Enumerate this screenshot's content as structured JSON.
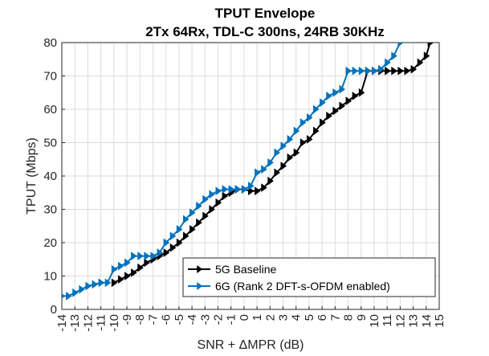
{
  "chart_data": {
    "type": "line",
    "title_lines": [
      "TPUT Envelope",
      "2Tx 64Rx, TDL-C 300ns, 24RB 30KHz"
    ],
    "xlabel": "SNR + ΔMPR (dB)",
    "ylabel": "TPUT (Mbps)",
    "xlim": [
      -14,
      15
    ],
    "ylim": [
      0,
      80
    ],
    "xticks": [
      -14,
      -13,
      -12,
      -11,
      -10,
      -9,
      -8,
      -7,
      -6,
      -5,
      -4,
      -3,
      -2,
      -1,
      0,
      1,
      2,
      3,
      4,
      5,
      6,
      7,
      8,
      9,
      10,
      11,
      12,
      13,
      14,
      15
    ],
    "yticks": [
      0,
      10,
      20,
      30,
      40,
      50,
      60,
      70,
      80
    ],
    "grid": true,
    "legend_position": "bottom-right",
    "series": [
      {
        "name": "5G Baseline",
        "color": "#000000",
        "marker": "triangle-right",
        "x": [
          -10,
          -9.5,
          -9,
          -8.5,
          -8,
          -7.5,
          -7,
          -6.5,
          -6,
          -5.5,
          -5,
          -4.5,
          -4,
          -3.5,
          -3,
          -2.5,
          -2,
          -1.5,
          -1,
          -0.5,
          0,
          0.5,
          1,
          1.5,
          2,
          2.5,
          3,
          3.5,
          4,
          4.5,
          5,
          5.5,
          6,
          6.5,
          7,
          7.5,
          8,
          8.5,
          9,
          9.5,
          10,
          10.5,
          11,
          11.5,
          12,
          12.5,
          13,
          13.5,
          14,
          14.3
        ],
        "y": [
          8,
          9,
          10,
          11,
          12.5,
          14,
          15,
          16,
          17,
          18.5,
          20,
          22,
          24,
          26,
          28,
          30,
          32,
          34,
          35,
          36,
          36,
          35.5,
          35.5,
          36.5,
          38.5,
          41,
          43,
          45.5,
          47,
          50,
          51,
          53.5,
          56,
          58,
          59.5,
          61,
          62.5,
          64,
          65,
          71.5,
          71.5,
          71.5,
          71.5,
          71.5,
          71.5,
          71.5,
          72,
          74,
          76,
          80
        ]
      },
      {
        "name": "6G (Rank 2 DFT-s-OFDM enabled)",
        "color": "#0072BD",
        "marker": "triangle-right",
        "x": [
          -14,
          -13.5,
          -13,
          -12.5,
          -12,
          -11.5,
          -11,
          -10.5,
          -10,
          -9.5,
          -9,
          -8.5,
          -8,
          -7.5,
          -7,
          -6.5,
          -6,
          -5.5,
          -5,
          -4.5,
          -4,
          -3.5,
          -3,
          -2.5,
          -2,
          -1.5,
          -1,
          -0.5,
          0,
          0.5,
          1,
          1.5,
          2,
          2.5,
          3,
          3.5,
          4,
          4.5,
          5,
          5.5,
          6,
          6.5,
          7,
          7.5,
          8,
          8.5,
          9,
          9.5,
          10,
          10.5,
          11,
          11.5,
          12,
          12.5
        ],
        "y": [
          4,
          4,
          5,
          6,
          7,
          7.5,
          8,
          8,
          12,
          13,
          14,
          16,
          16,
          16,
          16,
          17,
          20,
          22,
          24,
          27,
          29,
          31,
          33,
          34.5,
          35.5,
          36,
          36,
          36,
          36,
          37,
          41,
          42,
          44,
          47,
          49,
          51,
          53.5,
          56,
          57.5,
          60,
          62,
          64,
          65,
          66,
          71.5,
          71.5,
          71.5,
          71.5,
          71.5,
          72,
          74,
          76,
          80,
          82
        ]
      }
    ]
  }
}
